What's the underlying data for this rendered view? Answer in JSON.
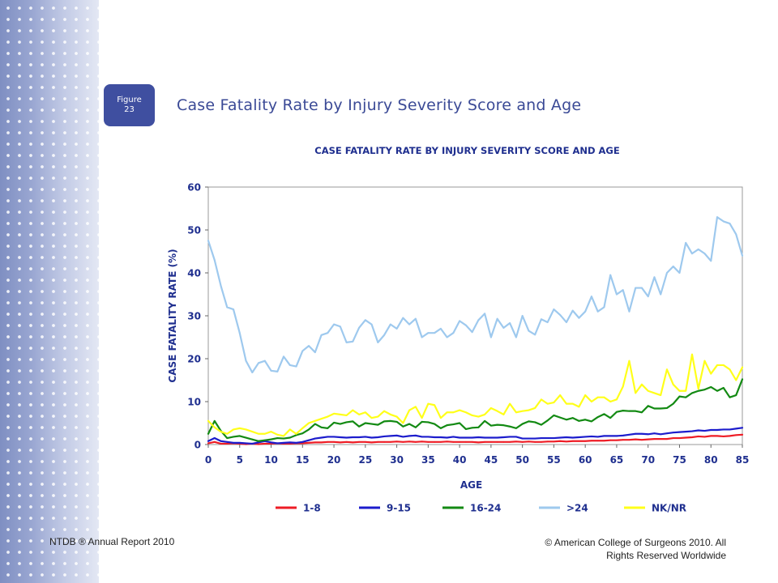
{
  "slide": {
    "badge_line1": "Figure",
    "badge_line2": "23",
    "title": "Case Fatality Rate by Injury Severity Score and Age",
    "footer_left": "NTDB ® Annual Report 2010",
    "footer_right_line1": "© American College of Surgeons 2010.  All",
    "footer_right_line2": "Rights Reserved Worldwide"
  },
  "colors": {
    "side_band": "#8d9bc8",
    "badge": "#3f4fa0",
    "title_text": "#3b4a96",
    "chart_text": "#1f2f8f"
  },
  "chart_data": {
    "type": "line",
    "title": "CASE FATALITY RATE BY INJURY SEVERITY SCORE AND AGE",
    "xlabel": "AGE",
    "ylabel": "CASE FATALITY RATE (%)",
    "xlim": [
      0,
      85
    ],
    "ylim": [
      0,
      60
    ],
    "xticks": [
      0,
      5,
      10,
      15,
      20,
      25,
      30,
      35,
      40,
      45,
      50,
      55,
      60,
      65,
      70,
      75,
      80,
      85
    ],
    "yticks": [
      0,
      10,
      20,
      30,
      40,
      50,
      60
    ],
    "grid": false,
    "legend_position": "bottom",
    "x": [
      0,
      1,
      2,
      3,
      4,
      5,
      6,
      7,
      8,
      9,
      10,
      11,
      12,
      13,
      14,
      15,
      16,
      17,
      18,
      19,
      20,
      21,
      22,
      23,
      24,
      25,
      26,
      27,
      28,
      29,
      30,
      31,
      32,
      33,
      34,
      35,
      36,
      37,
      38,
      39,
      40,
      41,
      42,
      43,
      44,
      45,
      46,
      47,
      48,
      49,
      50,
      51,
      52,
      53,
      54,
      55,
      56,
      57,
      58,
      59,
      60,
      61,
      62,
      63,
      64,
      65,
      66,
      67,
      68,
      69,
      70,
      71,
      72,
      73,
      74,
      75,
      76,
      77,
      78,
      79,
      80,
      81,
      82,
      83,
      84,
      85
    ],
    "series": [
      {
        "name": "1-8",
        "color": "#ee1c25",
        "values": [
          0.3,
          0.6,
          0.2,
          0.2,
          0.3,
          0.2,
          0.1,
          0.2,
          0.1,
          0.2,
          0.2,
          0.3,
          0.2,
          0.2,
          0.3,
          0.3,
          0.4,
          0.5,
          0.5,
          0.6,
          0.6,
          0.5,
          0.6,
          0.5,
          0.6,
          0.6,
          0.5,
          0.6,
          0.6,
          0.6,
          0.7,
          0.6,
          0.7,
          0.6,
          0.7,
          0.6,
          0.6,
          0.6,
          0.7,
          0.6,
          0.6,
          0.6,
          0.6,
          0.5,
          0.6,
          0.6,
          0.6,
          0.6,
          0.6,
          0.7,
          0.6,
          0.7,
          0.6,
          0.6,
          0.7,
          0.7,
          0.8,
          0.7,
          0.8,
          0.8,
          0.8,
          0.9,
          0.9,
          0.9,
          1.0,
          1.0,
          1.1,
          1.1,
          1.2,
          1.1,
          1.2,
          1.3,
          1.3,
          1.3,
          1.5,
          1.5,
          1.6,
          1.7,
          1.9,
          1.8,
          2.0,
          2.0,
          1.9,
          2.0,
          2.2,
          2.3
        ]
      },
      {
        "name": "9-15",
        "color": "#1c1ccc",
        "values": [
          0.8,
          1.5,
          0.8,
          0.6,
          0.4,
          0.4,
          0.3,
          0.2,
          0.5,
          0.8,
          0.5,
          0.3,
          0.4,
          0.5,
          0.4,
          0.6,
          1.0,
          1.4,
          1.6,
          1.8,
          1.8,
          1.7,
          1.6,
          1.7,
          1.7,
          1.8,
          1.6,
          1.7,
          1.9,
          2.0,
          2.1,
          1.8,
          2.0,
          2.1,
          1.8,
          1.8,
          1.7,
          1.7,
          1.6,
          1.8,
          1.6,
          1.6,
          1.6,
          1.7,
          1.6,
          1.6,
          1.6,
          1.7,
          1.8,
          1.8,
          1.4,
          1.4,
          1.4,
          1.5,
          1.5,
          1.5,
          1.6,
          1.7,
          1.6,
          1.7,
          1.8,
          1.9,
          1.8,
          2.0,
          2.0,
          2.0,
          2.1,
          2.3,
          2.5,
          2.5,
          2.4,
          2.6,
          2.4,
          2.6,
          2.8,
          2.9,
          3.0,
          3.1,
          3.3,
          3.2,
          3.4,
          3.4,
          3.5,
          3.5,
          3.7,
          3.9
        ]
      },
      {
        "name": "16-24",
        "color": "#138a13",
        "values": [
          2.5,
          5.5,
          3.2,
          1.5,
          1.8,
          2.0,
          1.6,
          1.2,
          0.8,
          1.0,
          1.2,
          1.5,
          1.4,
          1.6,
          2.2,
          2.6,
          3.5,
          4.8,
          4.0,
          3.8,
          5.1,
          4.8,
          5.2,
          5.4,
          4.2,
          5.0,
          4.8,
          4.6,
          5.4,
          5.5,
          5.3,
          4.2,
          4.8,
          4.0,
          5.3,
          5.2,
          4.8,
          3.8,
          4.5,
          4.7,
          5.0,
          3.6,
          3.9,
          4.0,
          5.5,
          4.4,
          4.6,
          4.5,
          4.2,
          3.8,
          4.8,
          5.4,
          5.2,
          4.6,
          5.6,
          6.8,
          6.3,
          5.8,
          6.2,
          5.5,
          5.8,
          5.4,
          6.4,
          7.1,
          6.2,
          7.6,
          7.9,
          7.8,
          7.8,
          7.5,
          9.0,
          8.4,
          8.4,
          8.5,
          9.5,
          11.2,
          11.0,
          12.0,
          12.5,
          12.8,
          13.4,
          12.5,
          13.2,
          11.0,
          11.5,
          15.2
        ]
      },
      {
        "name": ">24",
        "color": "#9ec9ee",
        "values": [
          47.5,
          43.0,
          37.0,
          32.0,
          31.5,
          26.0,
          19.5,
          16.8,
          19.0,
          19.5,
          17.2,
          17.0,
          20.5,
          18.5,
          18.2,
          21.8,
          23.0,
          21.5,
          25.5,
          26.0,
          28.0,
          27.5,
          23.8,
          24.0,
          27.2,
          29.0,
          28.0,
          23.8,
          25.5,
          28.0,
          27.0,
          29.5,
          28.0,
          29.3,
          25.0,
          26.0,
          26.0,
          27.0,
          25.0,
          26.0,
          28.8,
          27.8,
          26.2,
          29.0,
          30.5,
          25.0,
          29.3,
          27.2,
          28.3,
          25.0,
          30.0,
          26.5,
          25.6,
          29.2,
          28.5,
          31.5,
          30.2,
          28.5,
          31.2,
          29.5,
          31.0,
          34.5,
          31.0,
          32.0,
          39.5,
          35.0,
          36.0,
          31.0,
          36.5,
          36.5,
          34.5,
          39.0,
          35.0,
          40.0,
          41.5,
          40.0,
          47.0,
          44.5,
          45.5,
          44.5,
          42.8,
          53.0,
          52.0,
          51.5,
          49.0,
          44.0
        ]
      },
      {
        "name": "NK/NR",
        "color": "#ffff1a",
        "values": [
          5.5,
          4.0,
          3.0,
          2.5,
          3.5,
          3.8,
          3.5,
          3.0,
          2.5,
          2.5,
          3.0,
          2.3,
          2.0,
          3.5,
          2.5,
          3.8,
          5.0,
          5.5,
          6.0,
          6.5,
          7.2,
          7.0,
          6.8,
          8.0,
          7.0,
          7.5,
          6.2,
          6.5,
          7.8,
          7.0,
          6.5,
          5.0,
          8.0,
          8.8,
          6.2,
          9.5,
          9.2,
          6.2,
          7.5,
          7.5,
          8.0,
          7.5,
          6.8,
          6.5,
          7.0,
          8.5,
          7.8,
          7.0,
          9.5,
          7.5,
          7.8,
          8.0,
          8.5,
          10.5,
          9.5,
          9.8,
          11.5,
          9.5,
          9.5,
          8.8,
          11.5,
          10.0,
          11.0,
          11.0,
          10.0,
          10.5,
          13.5,
          19.5,
          12.0,
          14.0,
          12.5,
          12.0,
          11.5,
          17.5,
          14.0,
          12.5,
          12.5,
          21.0,
          13.0,
          19.5,
          16.5,
          18.5,
          18.5,
          17.5,
          15.0,
          18.0
        ]
      }
    ]
  }
}
